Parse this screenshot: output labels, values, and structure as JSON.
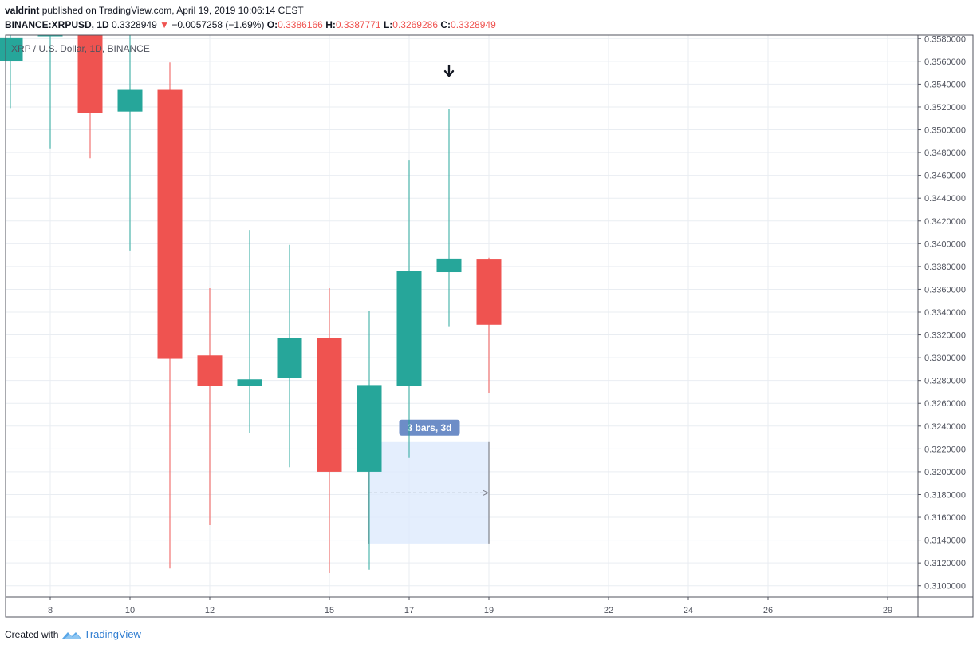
{
  "header": {
    "author": "valdrint",
    "published_text": "published on TradingView.com, April 19, 2019 10:06:14 CEST",
    "symbol": "BINANCE:XRPUSD, 1D",
    "last": "0.3328949",
    "change_arrow": "▼",
    "change": "−0.0057258 (−1.69%)",
    "o_label": "O:",
    "o_value": "0.3386166",
    "h_label": "H:",
    "h_value": "0.3387771",
    "l_label": "L:",
    "l_value": "0.3269286",
    "c_label": "C:",
    "c_value": "0.3328949"
  },
  "colors": {
    "up": "#26a69a",
    "down": "#ef5350",
    "grid": "#e9edf2",
    "axis": "#50535e",
    "range_fill": "#ddeafc",
    "badge": "#6d8dc7"
  },
  "chart_data": {
    "type": "candlestick",
    "legend": "XRP / U.S. Dollar, 1D, BINANCE",
    "ylim": [
      0.309,
      0.3583
    ],
    "y_ticks": [
      "0.3100000",
      "0.3120000",
      "0.3140000",
      "0.3160000",
      "0.3180000",
      "0.3200000",
      "0.3220000",
      "0.3240000",
      "0.3260000",
      "0.3280000",
      "0.3300000",
      "0.3320000",
      "0.3340000",
      "0.3360000",
      "0.3380000",
      "0.3400000",
      "0.3420000",
      "0.3440000",
      "0.3460000",
      "0.3480000",
      "0.3500000",
      "0.3520000",
      "0.3540000",
      "0.3560000",
      "0.3580000"
    ],
    "x_ticks": [
      {
        "day": 8,
        "label": "8"
      },
      {
        "day": 10,
        "label": "10"
      },
      {
        "day": 12,
        "label": "12"
      },
      {
        "day": 15,
        "label": "15"
      },
      {
        "day": 17,
        "label": "17"
      },
      {
        "day": 19,
        "label": "19"
      },
      {
        "day": 22,
        "label": "22"
      },
      {
        "day": 24,
        "label": "24"
      },
      {
        "day": 26,
        "label": "26"
      },
      {
        "day": 29,
        "label": "29"
      }
    ],
    "candles": [
      {
        "day": 7,
        "open": 0.356,
        "high": 0.36,
        "low": 0.3519,
        "close": 0.3581
      },
      {
        "day": 8,
        "open": 0.36,
        "high": 0.36,
        "low": 0.3483,
        "close": 0.36
      },
      {
        "day": 9,
        "open": 0.36,
        "high": 0.36,
        "low": 0.3475,
        "close": 0.3515
      },
      {
        "day": 10,
        "open": 0.3516,
        "high": 0.36,
        "low": 0.3394,
        "close": 0.3535
      },
      {
        "day": 11,
        "open": 0.3535,
        "high": 0.3559,
        "low": 0.3115,
        "close": 0.3299
      },
      {
        "day": 12,
        "open": 0.3302,
        "high": 0.3361,
        "low": 0.3153,
        "close": 0.3275
      },
      {
        "day": 13,
        "open": 0.3275,
        "high": 0.3412,
        "low": 0.3234,
        "close": 0.3281
      },
      {
        "day": 14,
        "open": 0.3282,
        "high": 0.3399,
        "low": 0.3204,
        "close": 0.3317
      },
      {
        "day": 15,
        "open": 0.3317,
        "high": 0.3361,
        "low": 0.3111,
        "close": 0.32
      },
      {
        "day": 16,
        "open": 0.32,
        "high": 0.3341,
        "low": 0.3114,
        "close": 0.3276
      },
      {
        "day": 17,
        "open": 0.3275,
        "high": 0.3473,
        "low": 0.3212,
        "close": 0.3376
      },
      {
        "day": 18,
        "open": 0.3375,
        "high": 0.3518,
        "low": 0.3327,
        "close": 0.3387
      },
      {
        "day": 19,
        "open": 0.3386166,
        "high": 0.3387771,
        "low": 0.3269286,
        "close": 0.3328949
      }
    ],
    "annotations": {
      "date_range": {
        "from_day": 16,
        "to_day": 19,
        "low": 0.3137,
        "high": 0.3226,
        "label": "3 bars, 3d"
      },
      "arrow": {
        "day": 18,
        "symbol": "🡇",
        "price": 0.355
      }
    }
  },
  "footer": {
    "created_with": "Created with",
    "brand": "TradingView"
  }
}
